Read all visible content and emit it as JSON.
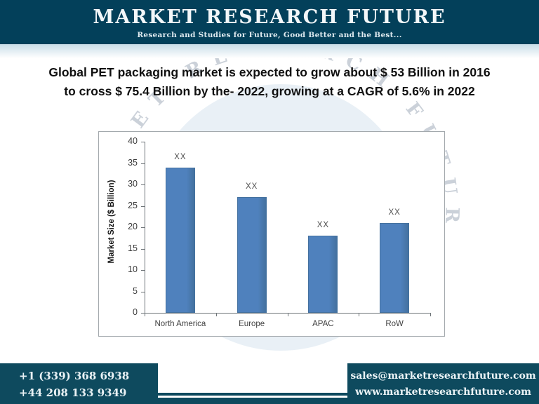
{
  "header": {
    "brand": "MARKET RESEARCH FUTURE",
    "tagline": "Research and Studies for Future, Good Better and the Best...",
    "bg_color": "#03405a"
  },
  "headline": {
    "line1": "Global PET packaging market is expected to grow about $ 53 Billion in 2016",
    "line2": "to cross $ 75.4 Billion by the- 2022, growing at a CAGR of 5.6% in 2022"
  },
  "watermark": {
    "text": "MARKET RESEARCH FUTURE"
  },
  "chart_data": {
    "type": "bar",
    "title": "",
    "categories": [
      "North America",
      "Europe",
      "APAC",
      "RoW"
    ],
    "values": [
      34,
      27,
      18,
      21
    ],
    "data_labels": [
      "XX",
      "XX",
      "XX",
      "XX"
    ],
    "xlabel": "",
    "ylabel": "Market Size ($ Billion)",
    "ylim": [
      0,
      40
    ],
    "yticks": [
      0,
      5,
      10,
      15,
      20,
      25,
      30,
      35,
      40
    ],
    "bar_color": "#4f81bd",
    "bar_edge_color": "#44719f",
    "grid": false,
    "legend": false
  },
  "footer": {
    "phone1": "+1 (339) 368 6938",
    "phone2": "+44 208 133 9349",
    "email": "sales@marketresearchfuture.com",
    "website": "www.marketresearchfuture.com",
    "bg_color": "#0e4a5e"
  }
}
